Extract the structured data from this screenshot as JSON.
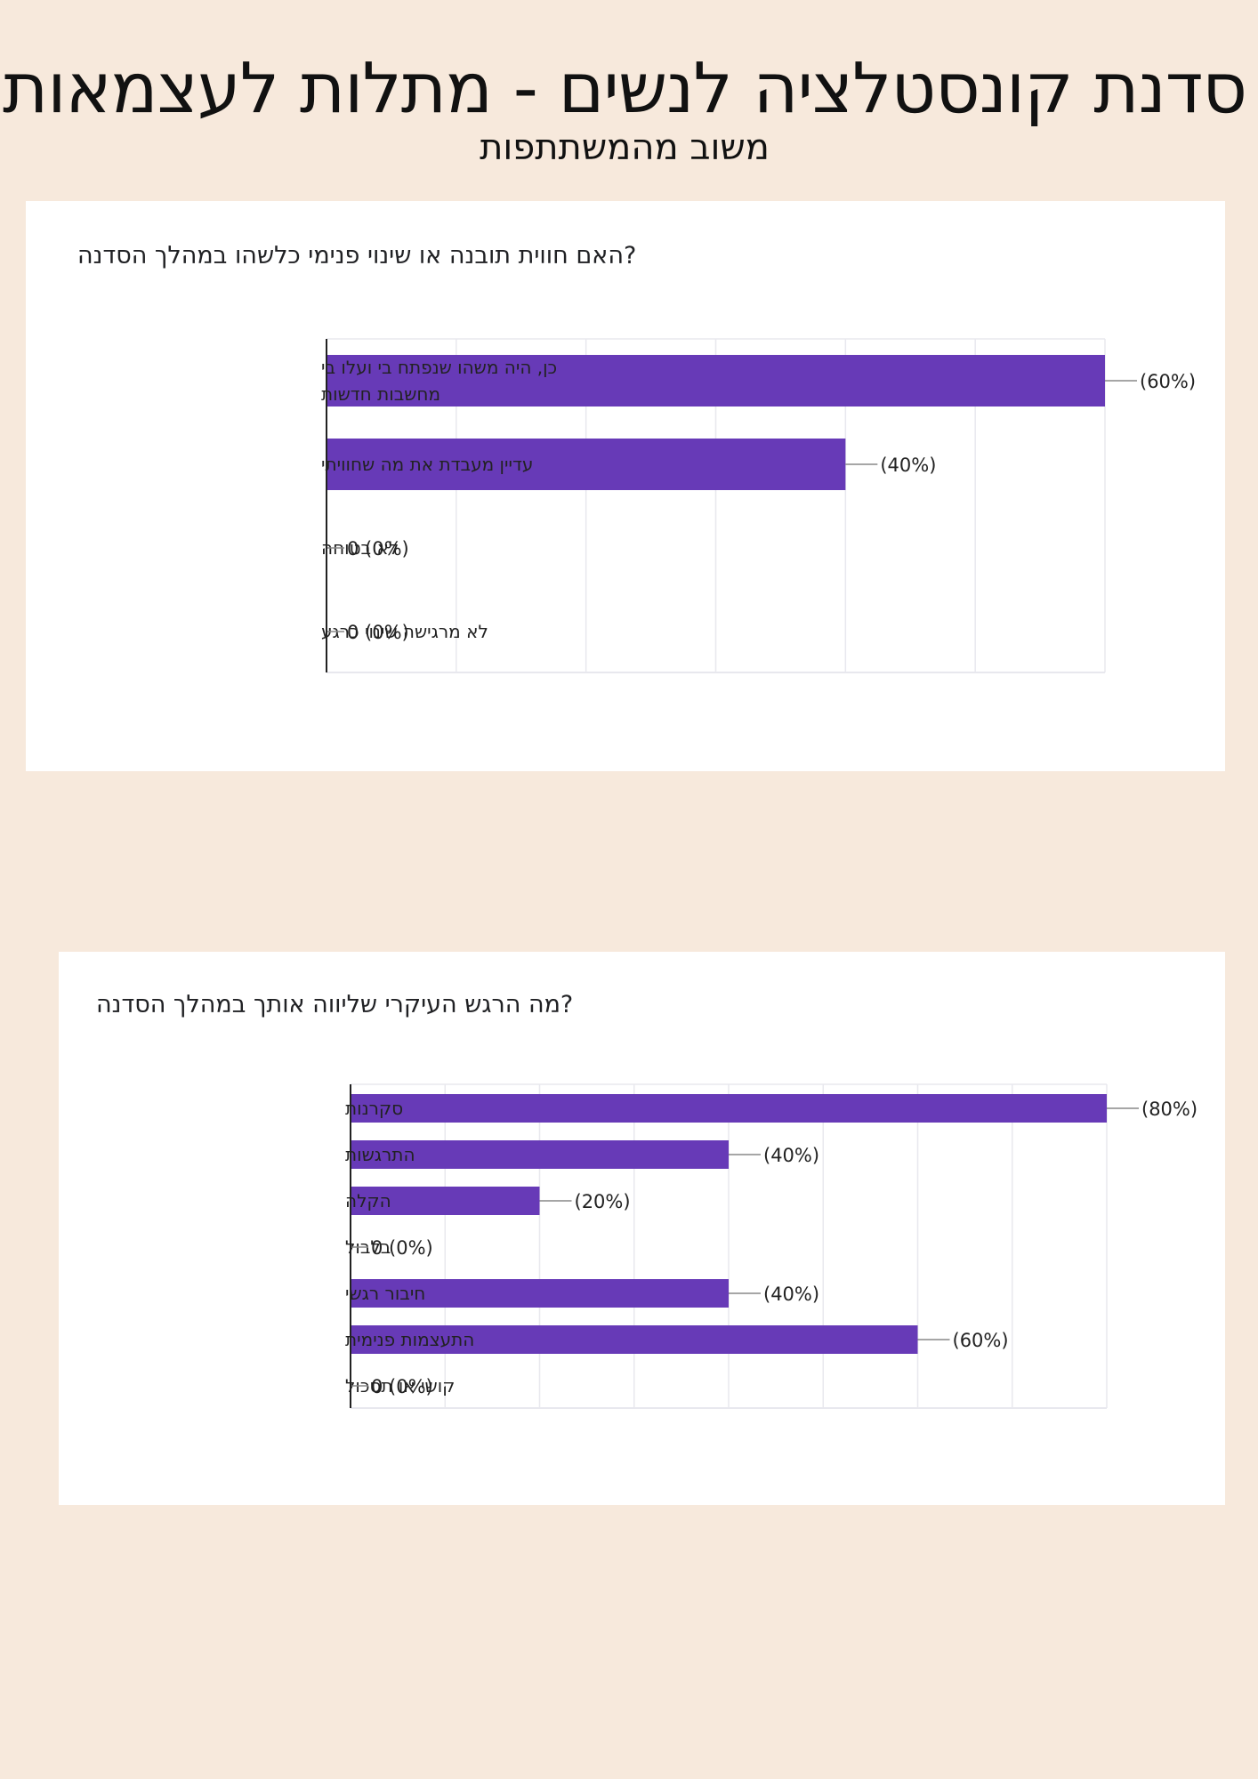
{
  "page": {
    "title": "סדנת קונסטלציה לנשים - מתלות לעצמאות",
    "subtitle": "משוב מהמשתתפות"
  },
  "colors": {
    "background": "#f7e9dc",
    "card": "#ffffff",
    "bar": "#673ab7",
    "gridline": "#e8e8ee",
    "axis": "#222222"
  },
  "chart_data": [
    {
      "type": "bar",
      "orientation": "horizontal",
      "title": "?האם חווית תובנה או שינוי פנימי כלשהו במהלך הסדנה",
      "categories": [
        [
          "כן, היה משהו שנפתח בי ועלו בי",
          "מחשבות חדשות"
        ],
        [
          "עדיין מעבדת את מה שחוויתי"
        ],
        [
          "לא בטוחה"
        ],
        [
          "לא מרגישה שינוי כרגע"
        ]
      ],
      "values": [
        60,
        40,
        0,
        0
      ],
      "value_labels": [
        "(60%)",
        "(40%)",
        "0 (0%)",
        "0 (0%)"
      ],
      "xlim": [
        0,
        60
      ],
      "grid": true,
      "unit": "%"
    },
    {
      "type": "bar",
      "orientation": "horizontal",
      "title": "?מה הרגש העיקרי שליווה אותך במהלך הסדנה",
      "categories": [
        [
          "סקרנות"
        ],
        [
          "התרגשות"
        ],
        [
          "הקלה"
        ],
        [
          "בלבול"
        ],
        [
          "חיבור רגשי"
        ],
        [
          "התעצמות פנימית"
        ],
        [
          "קושי או תסכול"
        ]
      ],
      "values": [
        80,
        40,
        20,
        0,
        40,
        60,
        0
      ],
      "value_labels": [
        "(80%)",
        "(40%)",
        "(20%)",
        "0 (0%)",
        "(40%)",
        "(60%)",
        "0 (0%)"
      ],
      "xlim": [
        0,
        80
      ],
      "grid": true,
      "unit": "%"
    }
  ]
}
